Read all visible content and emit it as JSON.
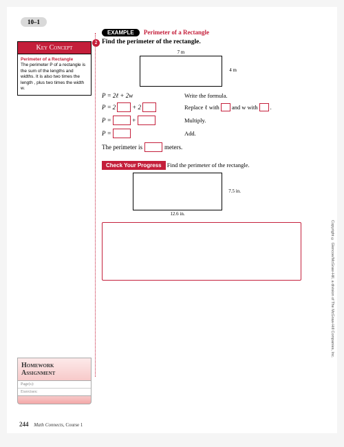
{
  "chapter_tab": "10–1",
  "example": {
    "pill": "EXAMPLE",
    "title": "Perimeter of a Rectangle"
  },
  "prompt": {
    "num": "2",
    "text": "Find the perimeter of the rectangle."
  },
  "key_concept": {
    "header": "Key Concept",
    "title": "Perimeter of a Rectangle",
    "body": "The perimeter P of a rectangle is the sum of the lengths and widths. It is also two times the length , plus two times the width w."
  },
  "rect1": {
    "top": "7 m",
    "side": "4 m"
  },
  "steps": {
    "r1_left": "P = 2ℓ + 2w",
    "r1_right": "Write the formula.",
    "r2_a": "P =",
    "r2_b": "2",
    "r2_c": "+ 2",
    "r2_right_a": "Replace ℓ with",
    "r2_right_b": "and w with",
    "r3_a": "P =",
    "r3_b": "+",
    "r3_right": "Multiply.",
    "r4_a": "P =",
    "r4_right": "Add."
  },
  "sentence": {
    "a": "The perimeter is",
    "b": "meters."
  },
  "cyp": {
    "pill": "Check Your Progress",
    "text": "Find the perimeter of the rectangle."
  },
  "rect2": {
    "side": "7.5 in.",
    "bottom": "12.6 in."
  },
  "homework": {
    "header_a": "Homework",
    "header_b": "Assignment",
    "row1": "Page(s):",
    "row2": "Exercises:"
  },
  "copyright": "Copyright © Glencoe/McGraw-Hill, a division of The McGraw-Hill Companies, Inc.",
  "footer": {
    "page": "244",
    "book": "Math Connects,",
    "course": " Course 1"
  }
}
